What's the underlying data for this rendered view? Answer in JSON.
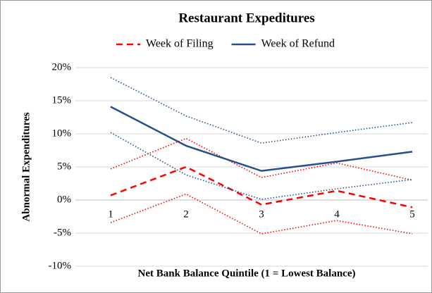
{
  "chart_data": {
    "type": "line",
    "title": "Restaurant Expeditures",
    "x_label": "Net Bank Balance Quintile (1 = Lowest Balance)",
    "y_label": "Abnormal Expenditures",
    "categories": [
      "1",
      "2",
      "3",
      "4",
      "5"
    ],
    "series": [
      {
        "name": "Week of Filing",
        "color": "#ff0000",
        "dash": "dashed",
        "values": [
          0.7,
          5.0,
          -0.7,
          1.4,
          -1.1
        ],
        "upper": [
          4.7,
          9.3,
          3.4,
          5.6,
          3.0
        ],
        "lower": [
          -3.4,
          0.9,
          -5.1,
          -3.1,
          -5.1
        ]
      },
      {
        "name": "Week of Refund",
        "color": "#254f8e",
        "dash": "solid",
        "values": [
          14.1,
          8.2,
          4.4,
          5.8,
          7.3
        ],
        "upper": [
          18.5,
          12.7,
          8.6,
          10.2,
          11.7
        ],
        "lower": [
          10.2,
          3.8,
          0.1,
          1.7,
          3.1
        ]
      }
    ],
    "ylim": [
      -10,
      20
    ],
    "yticks": [
      {
        "value": -10,
        "label": "-10%"
      },
      {
        "value": -5,
        "label": "-5%"
      },
      {
        "value": 0,
        "label": "0%"
      },
      {
        "value": 5,
        "label": "5%"
      },
      {
        "value": 10,
        "label": "10%"
      },
      {
        "value": 15,
        "label": "15%"
      },
      {
        "value": 20,
        "label": "20%"
      }
    ],
    "grid": true,
    "legend": "top"
  }
}
